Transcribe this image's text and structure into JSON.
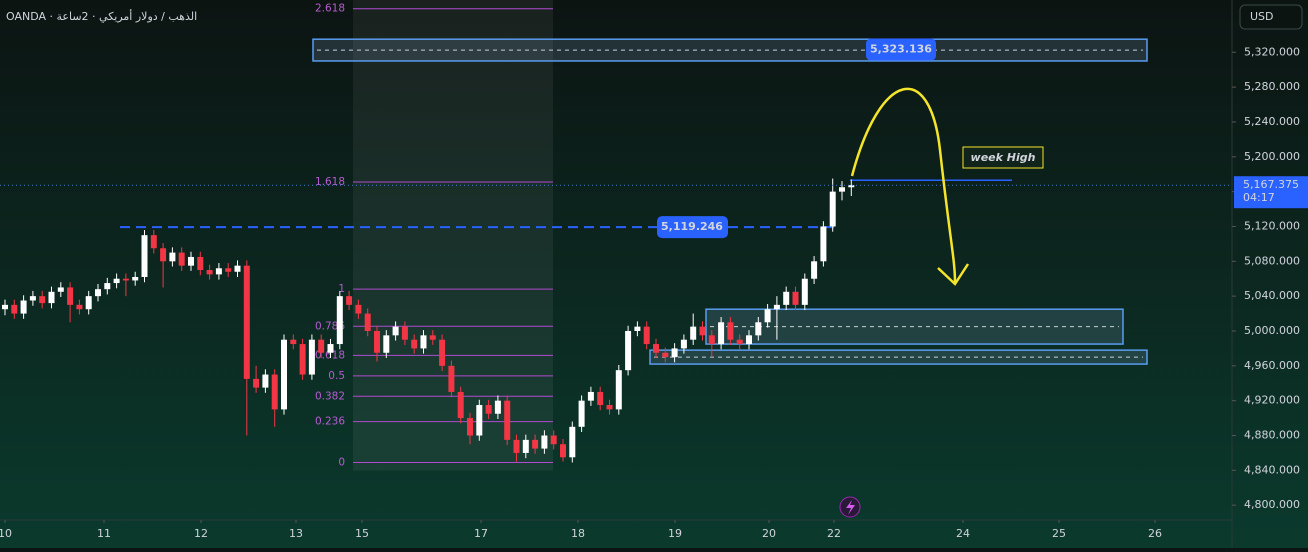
{
  "chart_data": {
    "type": "candlestick",
    "title": "OANDA · الذهب / دولار أمريكي · 2ساعة",
    "currency": "USD",
    "up_color": "#ffffff",
    "down_color": "#f23645",
    "ylim": [
      4783,
      5380
    ],
    "yticks": [
      {
        "value": 5320,
        "label": "5,320.000"
      },
      {
        "value": 5280,
        "label": "5,280.000"
      },
      {
        "value": 5240,
        "label": "5,240.000"
      },
      {
        "value": 5200,
        "label": "5,200.000"
      },
      {
        "value": 5160,
        "label": "5,160.000"
      },
      {
        "value": 5120,
        "label": "5,120.000"
      },
      {
        "value": 5080,
        "label": "5,080.000"
      },
      {
        "value": 5040,
        "label": "5,040.000"
      },
      {
        "value": 5000,
        "label": "5,000.000"
      },
      {
        "value": 4960,
        "label": "4,960.000"
      },
      {
        "value": 4920,
        "label": "4,920.000"
      },
      {
        "value": 4880,
        "label": "4,880.000"
      },
      {
        "value": 4840,
        "label": "4,840.000"
      },
      {
        "value": 4800,
        "label": "4,800.000"
      }
    ],
    "xticks": [
      10,
      11,
      12,
      13,
      15,
      17,
      18,
      19,
      20,
      22,
      24,
      25,
      26
    ],
    "ohlc": [
      [
        5025,
        5036,
        5018,
        5030
      ],
      [
        5030,
        5036,
        5014,
        5020
      ],
      [
        5020,
        5041,
        5014,
        5035
      ],
      [
        5035,
        5046,
        5029,
        5040
      ],
      [
        5040,
        5046,
        5026,
        5032
      ],
      [
        5032,
        5051,
        5026,
        5045
      ],
      [
        5045,
        5056,
        5039,
        5050
      ],
      [
        5050,
        5056,
        5010,
        5030
      ],
      [
        5030,
        5036,
        5019,
        5025
      ],
      [
        5025,
        5046,
        5019,
        5040
      ],
      [
        5040,
        5054,
        5034,
        5048
      ],
      [
        5048,
        5061,
        5042,
        5055
      ],
      [
        5055,
        5066,
        5049,
        5060
      ],
      [
        5060,
        5066,
        5040,
        5058
      ],
      [
        5058,
        5068,
        5052,
        5062
      ],
      [
        5062,
        5116,
        5056,
        5110
      ],
      [
        5110,
        5116,
        5089,
        5095
      ],
      [
        5095,
        5101,
        5050,
        5080
      ],
      [
        5080,
        5096,
        5074,
        5090
      ],
      [
        5090,
        5096,
        5069,
        5075
      ],
      [
        5075,
        5091,
        5069,
        5085
      ],
      [
        5085,
        5091,
        5064,
        5070
      ],
      [
        5070,
        5076,
        5059,
        5065
      ],
      [
        5065,
        5078,
        5059,
        5072
      ],
      [
        5072,
        5078,
        5062,
        5068
      ],
      [
        5068,
        5081,
        5062,
        5075
      ],
      [
        5075,
        5081,
        4880,
        4945
      ],
      [
        4945,
        4960,
        4929,
        4935
      ],
      [
        4935,
        4956,
        4929,
        4950
      ],
      [
        4950,
        4956,
        4890,
        4910
      ],
      [
        4910,
        4996,
        4904,
        4990
      ],
      [
        4990,
        4996,
        4979,
        4985
      ],
      [
        4985,
        4991,
        4944,
        4950
      ],
      [
        4950,
        4996,
        4944,
        4990
      ],
      [
        4990,
        4996,
        4969,
        4975
      ],
      [
        4975,
        4991,
        4969,
        4985
      ],
      [
        4985,
        5046,
        4979,
        5040
      ],
      [
        5040,
        5046,
        5024,
        5030
      ],
      [
        5030,
        5036,
        5014,
        5020
      ],
      [
        5020,
        5026,
        4994,
        5000
      ],
      [
        5000,
        5006,
        4965,
        4975
      ],
      [
        4975,
        5001,
        4969,
        4995
      ],
      [
        4995,
        5011,
        4989,
        5005
      ],
      [
        5005,
        5011,
        4984,
        4990
      ],
      [
        4990,
        4996,
        4974,
        4980
      ],
      [
        4980,
        5001,
        4974,
        4995
      ],
      [
        4995,
        5001,
        4984,
        4990
      ],
      [
        4990,
        4996,
        4954,
        4960
      ],
      [
        4960,
        4966,
        4924,
        4930
      ],
      [
        4930,
        4936,
        4894,
        4900
      ],
      [
        4900,
        4906,
        4870,
        4880
      ],
      [
        4880,
        4921,
        4874,
        4915
      ],
      [
        4915,
        4921,
        4899,
        4905
      ],
      [
        4905,
        4926,
        4899,
        4920
      ],
      [
        4920,
        4926,
        4869,
        4875
      ],
      [
        4875,
        4881,
        4850,
        4860
      ],
      [
        4860,
        4881,
        4854,
        4875
      ],
      [
        4875,
        4881,
        4859,
        4865
      ],
      [
        4865,
        4886,
        4859,
        4880
      ],
      [
        4880,
        4886,
        4864,
        4870
      ],
      [
        4870,
        4876,
        4850,
        4855
      ],
      [
        4855,
        4896,
        4849,
        4890
      ],
      [
        4890,
        4926,
        4884,
        4920
      ],
      [
        4920,
        4936,
        4914,
        4930
      ],
      [
        4930,
        4936,
        4909,
        4915
      ],
      [
        4915,
        4921,
        4904,
        4910
      ],
      [
        4910,
        4961,
        4904,
        4955
      ],
      [
        4955,
        5006,
        4949,
        5000
      ],
      [
        5000,
        5011,
        4994,
        5005
      ],
      [
        5005,
        5011,
        4979,
        4985
      ],
      [
        4985,
        4991,
        4969,
        4975
      ],
      [
        4975,
        4981,
        4964,
        4970
      ],
      [
        4970,
        4986,
        4964,
        4980
      ],
      [
        4980,
        4996,
        4974,
        4990
      ],
      [
        4990,
        5020,
        4984,
        5005
      ],
      [
        5005,
        5011,
        4989,
        4995
      ],
      [
        4995,
        5001,
        4970,
        4985
      ],
      [
        4985,
        5016,
        4979,
        5010
      ],
      [
        5010,
        5016,
        4984,
        4990
      ],
      [
        4990,
        4996,
        4979,
        4985
      ],
      [
        4985,
        5001,
        4979,
        4995
      ],
      [
        4995,
        5016,
        4989,
        5010
      ],
      [
        5010,
        5031,
        5004,
        5025
      ],
      [
        5025,
        5040,
        4990,
        5030
      ],
      [
        5030,
        5051,
        5024,
        5045
      ],
      [
        5045,
        5051,
        5024,
        5030
      ],
      [
        5030,
        5066,
        5024,
        5060
      ],
      [
        5060,
        5086,
        5054,
        5080
      ],
      [
        5080,
        5126,
        5074,
        5120
      ],
      [
        5120,
        5175,
        5114,
        5160
      ],
      [
        5160,
        5172,
        5150,
        5165
      ],
      [
        5165,
        5174,
        5155,
        5167.375
      ]
    ],
    "last_price": {
      "value": 5167.375,
      "label": "5,167.375"
    },
    "countdown": "04:17",
    "levels": [
      {
        "value": 5323.136,
        "label": "5,323.136"
      },
      {
        "value": 5119.246,
        "label": "5,119.246"
      }
    ],
    "zones": [
      {
        "top": 5335,
        "bottom": 5310
      },
      {
        "top": 5025,
        "bottom": 4985
      },
      {
        "top": 4978,
        "bottom": 4962
      }
    ],
    "fib": {
      "low": 4849,
      "high": 5048,
      "levels": [
        2.618,
        1.618,
        1,
        0.786,
        0.618,
        0.5,
        0.382,
        0.236,
        0
      ]
    },
    "week_high": {
      "value": 5173,
      "label": "week High"
    }
  }
}
